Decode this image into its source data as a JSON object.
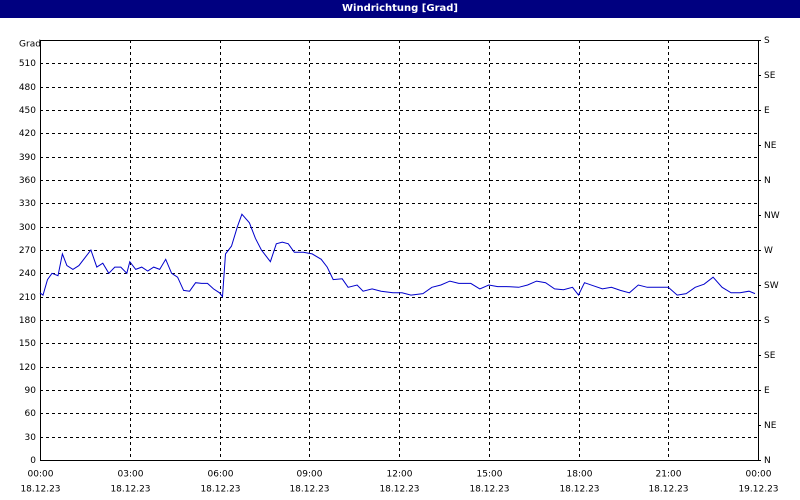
{
  "chart_data": {
    "type": "line",
    "title": "Windrichtung [Grad]",
    "y_axis_label": "Grad",
    "xlim": [
      0,
      24
    ],
    "xticks": [
      {
        "value": 0,
        "label": "00:00"
      },
      {
        "value": 3,
        "label": "03:00"
      },
      {
        "value": 6,
        "label": "06:00"
      },
      {
        "value": 9,
        "label": "09:00"
      },
      {
        "value": 12,
        "label": "12:00"
      },
      {
        "value": 15,
        "label": "15:00"
      },
      {
        "value": 18,
        "label": "18:00"
      },
      {
        "value": 21,
        "label": "21:00"
      },
      {
        "value": 24,
        "label": "00:00"
      }
    ],
    "xtick_dates": [
      "18.12.23",
      "18.12.23",
      "18.12.23",
      "18.12.23",
      "18.12.23",
      "18.12.23",
      "18.12.23",
      "18.12.23",
      "19.12.23"
    ],
    "ylim": [
      0,
      540
    ],
    "yticks": [
      0,
      30,
      60,
      90,
      120,
      150,
      180,
      210,
      240,
      270,
      300,
      330,
      360,
      390,
      420,
      450,
      480,
      510
    ],
    "y2lim": [
      0,
      540
    ],
    "y2ticks": [
      {
        "value": 0,
        "label": "N"
      },
      {
        "value": 45,
        "label": "NE"
      },
      {
        "value": 90,
        "label": "E"
      },
      {
        "value": 135,
        "label": "SE"
      },
      {
        "value": 180,
        "label": "S"
      },
      {
        "value": 225,
        "label": "SW"
      },
      {
        "value": 270,
        "label": "W"
      },
      {
        "value": 315,
        "label": "NW"
      },
      {
        "value": 360,
        "label": "N"
      },
      {
        "value": 405,
        "label": "NE"
      },
      {
        "value": 450,
        "label": "E"
      },
      {
        "value": 495,
        "label": "SE"
      },
      {
        "value": 540,
        "label": "S"
      }
    ],
    "grid": true,
    "series": [
      {
        "name": "Windrichtung",
        "color": "#0000cc",
        "x": [
          0,
          0.1,
          0.25,
          0.4,
          0.6,
          0.75,
          0.9,
          1.1,
          1.3,
          1.5,
          1.7,
          1.9,
          2.1,
          2.3,
          2.5,
          2.7,
          2.9,
          3.0,
          3.2,
          3.4,
          3.6,
          3.8,
          4.0,
          4.2,
          4.4,
          4.6,
          4.8,
          5.0,
          5.2,
          5.4,
          5.6,
          5.8,
          6.0,
          6.1,
          6.2,
          6.4,
          6.6,
          6.75,
          7.0,
          7.2,
          7.4,
          7.6,
          7.7,
          7.9,
          8.1,
          8.3,
          8.5,
          8.8,
          9.1,
          9.4,
          9.6,
          9.8,
          10.1,
          10.3,
          10.6,
          10.8,
          11.1,
          11.4,
          11.8,
          12.1,
          12.4,
          12.8,
          13.1,
          13.4,
          13.7,
          14.0,
          14.4,
          14.7,
          15.0,
          15.3,
          15.6,
          16.0,
          16.3,
          16.6,
          16.9,
          17.2,
          17.5,
          17.8,
          18.0,
          18.2,
          18.5,
          18.8,
          19.1,
          19.4,
          19.7,
          20.0,
          20.3,
          20.7,
          21.0,
          21.3,
          21.6,
          21.9,
          22.2,
          22.5,
          22.8,
          23.1,
          23.4,
          23.7,
          23.9
        ],
        "values": [
          215,
          212,
          232,
          240,
          237,
          265,
          250,
          245,
          250,
          260,
          270,
          248,
          253,
          240,
          248,
          248,
          240,
          255,
          245,
          248,
          243,
          248,
          245,
          258,
          240,
          235,
          218,
          217,
          228,
          227,
          227,
          220,
          215,
          210,
          265,
          275,
          300,
          316,
          305,
          285,
          270,
          260,
          255,
          278,
          280,
          278,
          267,
          267,
          265,
          258,
          248,
          232,
          233,
          222,
          225,
          217,
          220,
          217,
          215,
          215,
          212,
          214,
          222,
          225,
          230,
          227,
          227,
          220,
          225,
          223,
          223,
          222,
          225,
          230,
          228,
          220,
          219,
          222,
          212,
          228,
          224,
          220,
          222,
          218,
          215,
          225,
          222,
          222,
          222,
          212,
          214,
          222,
          226,
          235,
          222,
          215,
          215,
          217,
          214
        ]
      }
    ]
  }
}
